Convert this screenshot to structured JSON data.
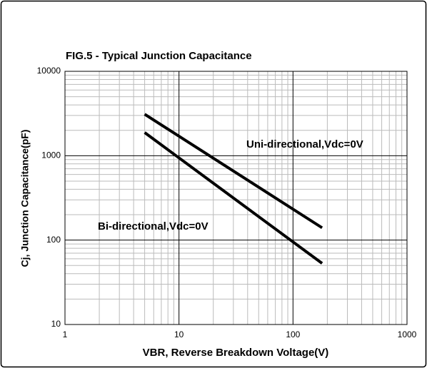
{
  "chart_data": {
    "type": "line",
    "title": "FIG.5 - Typical Junction Capacitance",
    "x_label": "VBR, Reverse Breakdown Voltage(V)",
    "y_label": "Cj, Junction Capacitance(pF)",
    "x_scale": "log",
    "y_scale": "log",
    "grid": true,
    "xlim": [
      1,
      1000
    ],
    "ylim": [
      10,
      10000
    ],
    "xticks": [
      1,
      10,
      100,
      1000
    ],
    "yticks": [
      10,
      100,
      1000,
      10000
    ],
    "series": [
      {
        "name": "Uni-directional,Vdc=0V",
        "color": "#000000",
        "x": [
          5,
          180
        ],
        "values": [
          3100,
          140
        ]
      },
      {
        "name": "Bi-directional,Vdc=0V",
        "color": "#000000",
        "x": [
          5,
          180
        ],
        "values": [
          1880,
          53
        ]
      }
    ]
  }
}
